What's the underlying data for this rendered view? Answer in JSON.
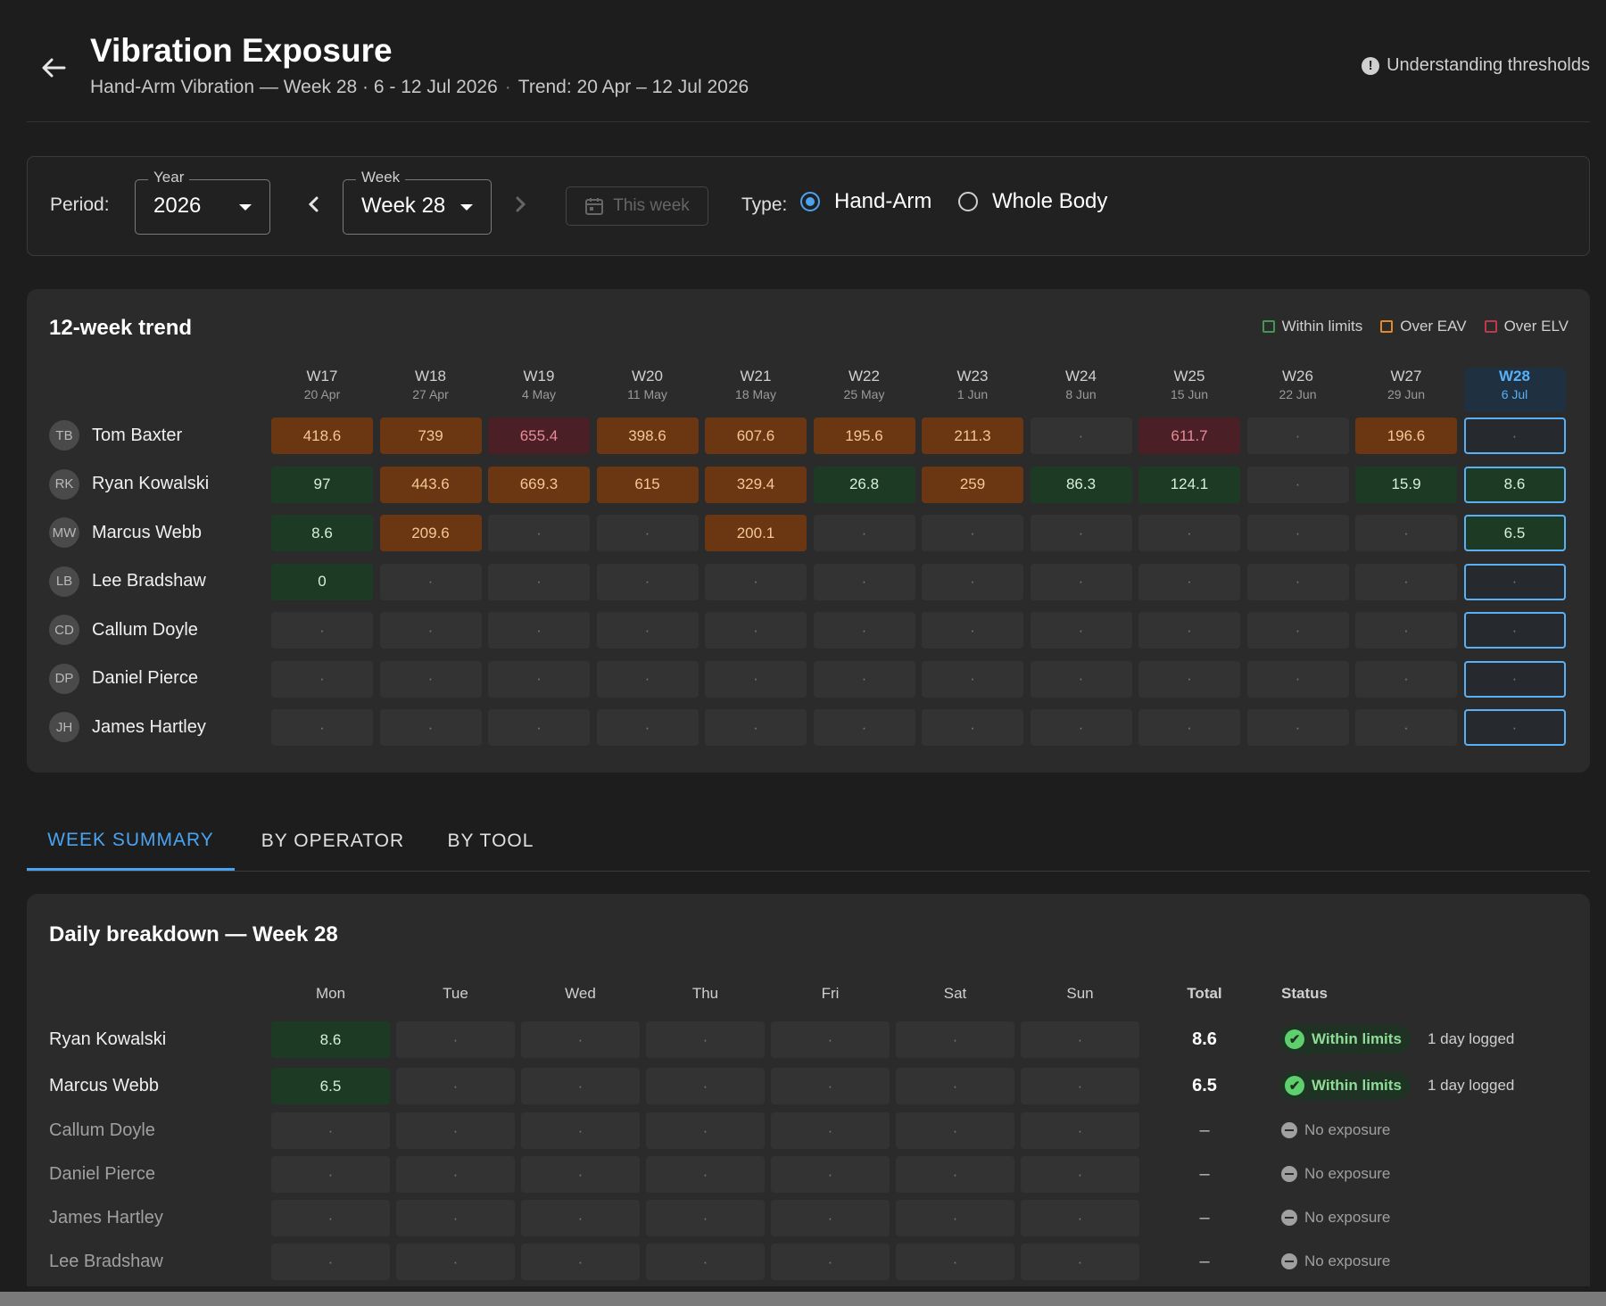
{
  "header": {
    "title": "Vibration Exposure",
    "subtitle_main": "Hand-Arm Vibration — Week 28 · 6 - 12 Jul 2026",
    "subtitle_sep": "·",
    "subtitle_trend": "Trend: 20 Apr – 12 Jul 2026",
    "help_label": "Understanding thresholds",
    "help_icon": "!"
  },
  "period": {
    "label": "Period:",
    "year_label": "Year",
    "year_value": "2026",
    "week_label": "Week",
    "week_value": "Week 28",
    "this_week": "This week",
    "type_label": "Type:",
    "types": [
      {
        "label": "Hand-Arm",
        "selected": true
      },
      {
        "label": "Whole Body",
        "selected": false
      }
    ]
  },
  "trend": {
    "title": "12-week trend",
    "legend": [
      {
        "label": "Within limits",
        "color": "#3f9a4f"
      },
      {
        "label": "Over EAV",
        "color": "#e08a2a"
      },
      {
        "label": "Over ELV",
        "color": "#c0394a"
      }
    ],
    "weeks": [
      {
        "w": "W17",
        "d": "20 Apr"
      },
      {
        "w": "W18",
        "d": "27 Apr"
      },
      {
        "w": "W19",
        "d": "4 May"
      },
      {
        "w": "W20",
        "d": "11 May"
      },
      {
        "w": "W21",
        "d": "18 May"
      },
      {
        "w": "W22",
        "d": "25 May"
      },
      {
        "w": "W23",
        "d": "1 Jun"
      },
      {
        "w": "W24",
        "d": "8 Jun"
      },
      {
        "w": "W25",
        "d": "15 Jun"
      },
      {
        "w": "W26",
        "d": "22 Jun"
      },
      {
        "w": "W27",
        "d": "29 Jun"
      },
      {
        "w": "W28",
        "d": "6 Jul"
      }
    ],
    "operators": [
      {
        "initials": "TB",
        "name": "Tom Baxter",
        "values": [
          "418.6",
          "739",
          "655.4",
          "398.6",
          "607.6",
          "195.6",
          "211.3",
          "·",
          "611.7",
          "·",
          "196.6",
          "·"
        ],
        "status": [
          "o",
          "o",
          "r",
          "o",
          "o",
          "o",
          "o",
          "",
          "r",
          "",
          "o",
          ""
        ]
      },
      {
        "initials": "RK",
        "name": "Ryan Kowalski",
        "values": [
          "97",
          "443.6",
          "669.3",
          "615",
          "329.4",
          "26.8",
          "259",
          "86.3",
          "124.1",
          "·",
          "15.9",
          "8.6"
        ],
        "status": [
          "g",
          "o",
          "o",
          "o",
          "o",
          "g",
          "o",
          "g",
          "g",
          "",
          "g",
          "g"
        ]
      },
      {
        "initials": "MW",
        "name": "Marcus Webb",
        "values": [
          "8.6",
          "209.6",
          "·",
          "·",
          "200.1",
          "·",
          "·",
          "·",
          "·",
          "·",
          "·",
          "6.5"
        ],
        "status": [
          "g",
          "o",
          "",
          "",
          "o",
          "",
          "",
          "",
          "",
          "",
          "",
          "g"
        ]
      },
      {
        "initials": "LB",
        "name": "Lee Bradshaw",
        "values": [
          "0",
          "·",
          "·",
          "·",
          "·",
          "·",
          "·",
          "·",
          "·",
          "·",
          "·",
          "·"
        ],
        "status": [
          "g",
          "",
          "",
          "",
          "",
          "",
          "",
          "",
          "",
          "",
          "",
          ""
        ]
      },
      {
        "initials": "CD",
        "name": "Callum Doyle",
        "values": [
          "·",
          "·",
          "·",
          "·",
          "·",
          "·",
          "·",
          "·",
          "·",
          "·",
          "·",
          "·"
        ],
        "status": [
          "",
          "",
          "",
          "",
          "",
          "",
          "",
          "",
          "",
          "",
          "",
          ""
        ]
      },
      {
        "initials": "DP",
        "name": "Daniel Pierce",
        "values": [
          "·",
          "·",
          "·",
          "·",
          "·",
          "·",
          "·",
          "·",
          "·",
          "·",
          "·",
          "·"
        ],
        "status": [
          "",
          "",
          "",
          "",
          "",
          "",
          "",
          "",
          "",
          "",
          "",
          ""
        ]
      },
      {
        "initials": "JH",
        "name": "James Hartley",
        "values": [
          "·",
          "·",
          "·",
          "·",
          "·",
          "·",
          "·",
          "·",
          "·",
          "·",
          "·",
          "·"
        ],
        "status": [
          "",
          "",
          "",
          "",
          "",
          "",
          "",
          "",
          "",
          "",
          "",
          ""
        ]
      }
    ]
  },
  "tabs": [
    {
      "label": "WEEK SUMMARY",
      "active": true
    },
    {
      "label": "BY OPERATOR",
      "active": false
    },
    {
      "label": "BY TOOL",
      "active": false
    }
  ],
  "daily": {
    "title": "Daily breakdown — Week 28",
    "days": [
      "Mon",
      "Tue",
      "Wed",
      "Thu",
      "Fri",
      "Sat",
      "Sun"
    ],
    "total_label": "Total",
    "status_label": "Status",
    "rows": [
      {
        "name": "Ryan Kowalski",
        "values": [
          "8.6",
          "·",
          "·",
          "·",
          "·",
          "·",
          "·"
        ],
        "status": [
          "g",
          "",
          "",
          "",
          "",
          "",
          ""
        ],
        "total": "8.6",
        "state": "within",
        "status_text": "Within limits",
        "logged": "1 day logged"
      },
      {
        "name": "Marcus Webb",
        "values": [
          "6.5",
          "·",
          "·",
          "·",
          "·",
          "·",
          "·"
        ],
        "status": [
          "g",
          "",
          "",
          "",
          "",
          "",
          ""
        ],
        "total": "6.5",
        "state": "within",
        "status_text": "Within limits",
        "logged": "1 day logged"
      },
      {
        "name": "Callum Doyle",
        "values": [
          "·",
          "·",
          "·",
          "·",
          "·",
          "·",
          "·"
        ],
        "status": [
          "",
          "",
          "",
          "",
          "",
          "",
          ""
        ],
        "total": "–",
        "state": "none",
        "status_text": "No exposure",
        "logged": ""
      },
      {
        "name": "Daniel Pierce",
        "values": [
          "·",
          "·",
          "·",
          "·",
          "·",
          "·",
          "·"
        ],
        "status": [
          "",
          "",
          "",
          "",
          "",
          "",
          ""
        ],
        "total": "–",
        "state": "none",
        "status_text": "No exposure",
        "logged": ""
      },
      {
        "name": "James Hartley",
        "values": [
          "·",
          "·",
          "·",
          "·",
          "·",
          "·",
          "·"
        ],
        "status": [
          "",
          "",
          "",
          "",
          "",
          "",
          ""
        ],
        "total": "–",
        "state": "none",
        "status_text": "No exposure",
        "logged": ""
      },
      {
        "name": "Lee Bradshaw",
        "values": [
          "·",
          "·",
          "·",
          "·",
          "·",
          "·",
          "·"
        ],
        "status": [
          "",
          "",
          "",
          "",
          "",
          "",
          ""
        ],
        "total": "–",
        "state": "none",
        "status_text": "No exposure",
        "logged": ""
      }
    ]
  }
}
